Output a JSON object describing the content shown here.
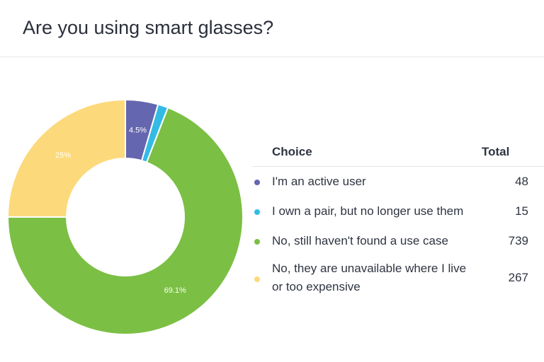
{
  "title": "Are you using smart glasses?",
  "legend": {
    "choice_header": "Choice",
    "total_header": "Total"
  },
  "chart_data": {
    "type": "pie",
    "variant": "donut",
    "title": "Are you using smart glasses?",
    "slices": [
      {
        "label": "I'm an active user",
        "value": 48,
        "percent_label": "4.5%",
        "color": "#6566b0"
      },
      {
        "label": "I own a pair, but no longer use them",
        "value": 15,
        "percent_label": "",
        "color": "#33bbe6"
      },
      {
        "label": "No, still haven't found a use case",
        "value": 739,
        "percent_label": "69.1%",
        "color": "#7bbf44"
      },
      {
        "label": "No, they are unavailable where I live or too expensive",
        "value": 267,
        "percent_label": "25%",
        "color": "#fcd97a"
      }
    ]
  }
}
